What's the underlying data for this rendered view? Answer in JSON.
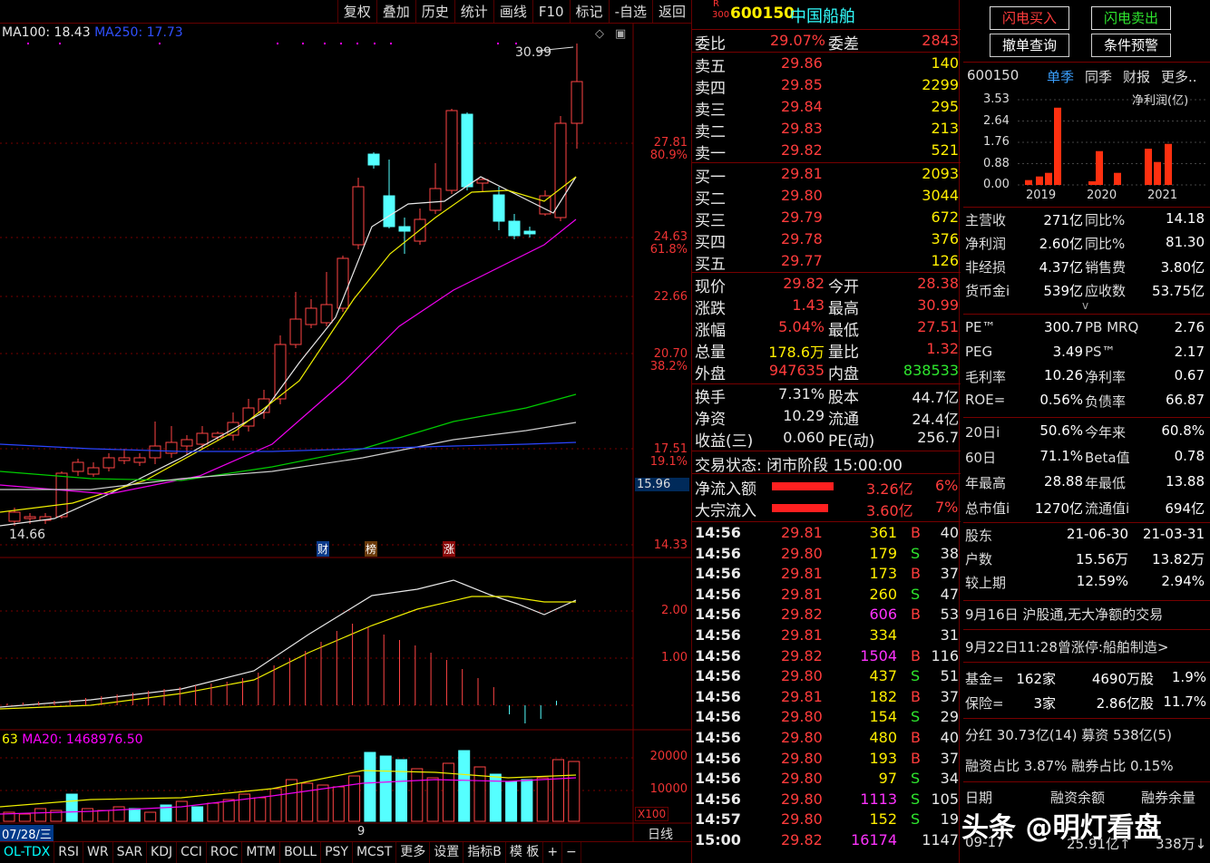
{
  "toolbar": {
    "items": [
      "复权",
      "叠加",
      "历史",
      "统计",
      "画线",
      "F10",
      "标记",
      "-自选",
      "返回"
    ]
  },
  "chart": {
    "ma_legend": {
      "ma100": "MA100: 18.43",
      "ma250": "MA250: 17.73"
    },
    "high_label": "30.99",
    "low_label": "14.66",
    "price_axis": [
      {
        "v": "27.81",
        "p": "80.9%"
      },
      {
        "v": "24.63",
        "p": "61.8%"
      },
      {
        "v": "22.66",
        "p": ""
      },
      {
        "v": "20.70",
        "p": "38.2%"
      },
      {
        "v": "17.51",
        "p": "19.1%"
      },
      {
        "v": "14.33",
        "p": ""
      }
    ],
    "current_marker": "15.96",
    "events": [
      "财",
      "榜",
      "涨"
    ],
    "macd_axis": [
      "2.00",
      "1.00"
    ],
    "vol_legend": {
      "a": "63",
      "ma20": "MA20: 1468976.50"
    },
    "vol_axis": [
      "20000",
      "10000"
    ],
    "vol_unit": "X100",
    "date_left": "07/28/三",
    "date_mid": "9",
    "period": "日线"
  },
  "bottom_tabs": [
    "OL-TDX",
    "RSI",
    "WR",
    "SAR",
    "KDJ",
    "CCI",
    "ROC",
    "MTM",
    "BOLL",
    "PSY",
    "MCST",
    "更多",
    "设置",
    "指标B",
    "模 板",
    "+",
    "−"
  ],
  "quote": {
    "badge_r": "R",
    "badge_300": "300",
    "code": "600150",
    "name": "中国船舶",
    "weibi_label": "委比",
    "weibi": "29.07%",
    "weicha_label": "委差",
    "weicha": "2843",
    "sells": [
      {
        "l": "卖五",
        "p": "29.86",
        "v": "140"
      },
      {
        "l": "卖四",
        "p": "29.85",
        "v": "2299"
      },
      {
        "l": "卖三",
        "p": "29.84",
        "v": "295"
      },
      {
        "l": "卖二",
        "p": "29.83",
        "v": "213"
      },
      {
        "l": "卖一",
        "p": "29.82",
        "v": "521"
      }
    ],
    "buys": [
      {
        "l": "买一",
        "p": "29.81",
        "v": "2093"
      },
      {
        "l": "买二",
        "p": "29.80",
        "v": "3044"
      },
      {
        "l": "买三",
        "p": "29.79",
        "v": "672"
      },
      {
        "l": "买四",
        "p": "29.78",
        "v": "376"
      },
      {
        "l": "买五",
        "p": "29.77",
        "v": "126"
      }
    ],
    "stats": [
      {
        "a": "现价",
        "av": "29.82",
        "ac": "red",
        "b": "今开",
        "bv": "28.38",
        "bc": "red"
      },
      {
        "a": "涨跌",
        "av": "1.43",
        "ac": "red",
        "b": "最高",
        "bv": "30.99",
        "bc": "red"
      },
      {
        "a": "涨幅",
        "av": "5.04%",
        "ac": "red",
        "b": "最低",
        "bv": "27.51",
        "bc": "red"
      },
      {
        "a": "总量",
        "av": "178.6万",
        "ac": "yel",
        "b": "量比",
        "bv": "1.32",
        "bc": "red"
      },
      {
        "a": "外盘",
        "av": "947635",
        "ac": "red",
        "b": "内盘",
        "bv": "838533",
        "bc": "grn"
      }
    ],
    "stats2": [
      {
        "a": "换手",
        "av": "7.31%",
        "b": "股本",
        "bv": "44.7亿"
      },
      {
        "a": "净资",
        "av": "10.29",
        "b": "流通",
        "bv": "24.4亿"
      },
      {
        "a": "收益(三)",
        "av": "0.060",
        "b": "PE(动)",
        "bv": "256.7"
      }
    ],
    "trade_state": "交易状态: 闭市阶段 15:00:00",
    "flows": [
      {
        "l": "净流入额",
        "v": "3.26亿",
        "p": "6%"
      },
      {
        "l": "大宗流入",
        "v": "3.60亿",
        "p": "7%"
      }
    ],
    "ticks": [
      {
        "t": "14:56",
        "p": "29.81",
        "v": "361",
        "vc": "yel",
        "s": "B",
        "n": "40"
      },
      {
        "t": "14:56",
        "p": "29.80",
        "v": "179",
        "vc": "yel",
        "s": "S",
        "n": "38"
      },
      {
        "t": "14:56",
        "p": "29.81",
        "v": "173",
        "vc": "yel",
        "s": "B",
        "n": "37"
      },
      {
        "t": "14:56",
        "p": "29.81",
        "v": "260",
        "vc": "yel",
        "s": "S",
        "n": "47"
      },
      {
        "t": "14:56",
        "p": "29.82",
        "v": "606",
        "vc": "mag",
        "s": "B",
        "n": "53"
      },
      {
        "t": "14:56",
        "p": "29.81",
        "v": "334",
        "vc": "yel",
        "s": "",
        "n": "31"
      },
      {
        "t": "14:56",
        "p": "29.82",
        "v": "1504",
        "vc": "mag",
        "s": "B",
        "n": "116"
      },
      {
        "t": "14:56",
        "p": "29.80",
        "v": "437",
        "vc": "yel",
        "s": "S",
        "n": "51"
      },
      {
        "t": "14:56",
        "p": "29.81",
        "v": "182",
        "vc": "yel",
        "s": "B",
        "n": "37"
      },
      {
        "t": "14:56",
        "p": "29.80",
        "v": "154",
        "vc": "yel",
        "s": "S",
        "n": "29"
      },
      {
        "t": "14:56",
        "p": "29.80",
        "v": "480",
        "vc": "yel",
        "s": "B",
        "n": "40"
      },
      {
        "t": "14:56",
        "p": "29.80",
        "v": "193",
        "vc": "yel",
        "s": "B",
        "n": "37"
      },
      {
        "t": "14:56",
        "p": "29.80",
        "v": "97",
        "vc": "yel",
        "s": "S",
        "n": "34"
      },
      {
        "t": "14:56",
        "p": "29.80",
        "v": "1113",
        "vc": "mag",
        "s": "S",
        "n": "105"
      },
      {
        "t": "14:57",
        "p": "29.80",
        "v": "152",
        "vc": "yel",
        "s": "S",
        "n": "19"
      },
      {
        "t": "15:00",
        "p": "29.82",
        "v": "16174",
        "vc": "mag",
        "s": "",
        "n": "1147"
      }
    ]
  },
  "right": {
    "buy_btn": "闪电买入",
    "sell_btn": "闪电卖出",
    "cancel_btn": "撤单查询",
    "cond_btn": "条件预警",
    "code": "600150",
    "tabs": [
      "单季",
      "同季",
      "财报",
      "更多.."
    ],
    "y_axis": [
      "3.53",
      "2.64",
      "1.76",
      "0.88",
      "0.00"
    ],
    "chart_title": "净利润(亿)",
    "years": [
      "2019",
      "2020",
      "2021"
    ],
    "profit_chart": {
      "type": "bar",
      "values": [
        0.2,
        0.35,
        0.5,
        3.2,
        0.15,
        1.4,
        0.5,
        1.5,
        0.95,
        1.7
      ]
    },
    "fin": [
      [
        "主营收",
        "271亿",
        "同比%",
        "14.18"
      ],
      [
        "净利润",
        "2.60亿",
        "同比%",
        "81.30"
      ],
      [
        "非经损",
        "4.37亿",
        "销售费",
        "3.80亿"
      ],
      [
        "货币金i",
        "539亿",
        "应收数",
        "53.75亿"
      ]
    ],
    "caret": "v",
    "fin2": [
      [
        "PE™",
        "300.7",
        "PB MRQ",
        "2.76"
      ],
      [
        "PEG",
        "3.49",
        "PS™",
        "2.17"
      ],
      [
        "毛利率",
        "10.26",
        "净利率",
        "0.67"
      ],
      [
        "ROE=",
        "0.56%",
        "负债率",
        "66.87"
      ]
    ],
    "fin3": [
      [
        "20日i",
        "50.6%",
        "今年来",
        "60.8%"
      ],
      [
        "60日",
        "71.1%",
        "Beta值",
        "0.78"
      ],
      [
        "年最高",
        "28.88",
        "年最低",
        "13.88"
      ],
      [
        "总市值i",
        "1270亿",
        "流通值i",
        "694亿"
      ]
    ],
    "holders": [
      [
        "股东",
        "21-06-30",
        "21-03-31"
      ],
      [
        "户数",
        "15.56万",
        "13.82万"
      ],
      [
        "较上期",
        "12.59%",
        "2.94%"
      ]
    ],
    "news1": "9月16日 沪股通,无大净额的交易",
    "news2": "9月22日11:28曾涨停:船舶制造>",
    "inst": [
      [
        "基金=",
        "162家",
        "4690万股",
        "1.9%"
      ],
      [
        "保险=",
        "3家",
        "2.86亿股",
        "11.7%"
      ]
    ],
    "div": "分红 30.73亿(14) 募资 538亿(5)",
    "margin": "融资占比 3.87% 融券占比 0.15%",
    "margin_hdr": [
      "日期",
      "融资余额",
      "融券余量"
    ],
    "margin_row": [
      "09-17",
      "25.91亿↑",
      "338万↓"
    ],
    "watermark": "头条 @明灯看盘"
  }
}
